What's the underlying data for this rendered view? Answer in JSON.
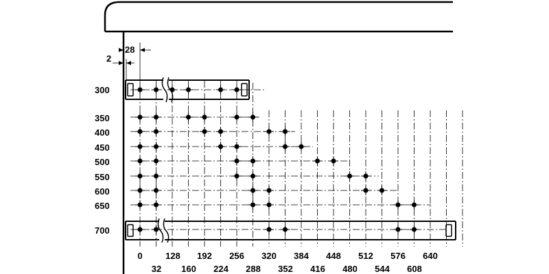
{
  "dimensions": {
    "offset_top": "28",
    "offset_side": "2"
  },
  "row_labels": [
    "300",
    "350",
    "400",
    "450",
    "500",
    "550",
    "600",
    "650",
    "700"
  ],
  "column_labels_top": [
    "0",
    "128",
    "192",
    "256",
    "320",
    "384",
    "448",
    "512",
    "576",
    "640"
  ],
  "column_labels_bottom": [
    "32",
    "160",
    "224",
    "288",
    "352",
    "416",
    "480",
    "544",
    "608"
  ],
  "chart_data": {
    "type": "hole-pattern diagram",
    "x_columns": [
      0,
      32,
      64,
      96,
      128,
      160,
      192,
      224,
      256,
      288,
      320,
      352,
      384,
      416,
      448,
      480,
      512,
      544,
      576,
      608,
      640
    ],
    "rows": [
      {
        "label": "300",
        "holes": [
          0,
          32,
          64,
          96,
          160,
          192
        ]
      },
      {
        "label": "350",
        "holes": [
          0,
          32,
          96,
          128,
          192,
          224
        ]
      },
      {
        "label": "400",
        "holes": [
          0,
          32,
          128,
          160,
          256,
          288
        ]
      },
      {
        "label": "450",
        "holes": [
          0,
          32,
          160,
          192,
          288,
          320
        ]
      },
      {
        "label": "500",
        "holes": [
          0,
          32,
          192,
          224,
          352,
          384
        ]
      },
      {
        "label": "550",
        "holes": [
          0,
          32,
          192,
          224,
          416,
          448
        ]
      },
      {
        "label": "600",
        "holes": [
          0,
          32,
          224,
          256,
          448,
          480
        ]
      },
      {
        "label": "650",
        "holes": [
          0,
          32,
          224,
          256,
          512,
          544
        ]
      },
      {
        "label": "700",
        "holes": [
          0,
          32,
          256,
          288,
          512,
          544
        ]
      }
    ]
  }
}
